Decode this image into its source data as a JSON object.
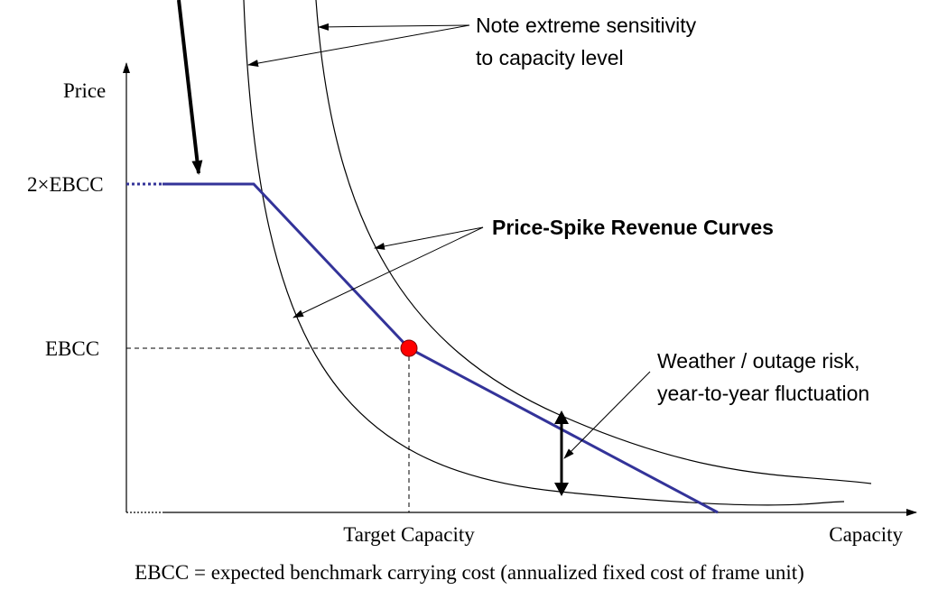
{
  "diagram": {
    "axes": {
      "y_label": "Price",
      "x_label": "Capacity"
    },
    "levels": {
      "high": "2×EBCC",
      "mid": "EBCC"
    },
    "target": "Target Capacity",
    "annotations": {
      "sensitivity": [
        "Note extreme sensitivity",
        "to capacity level"
      ],
      "curves": "Price-Spike Revenue Curves",
      "risk": [
        "Weather / outage risk,",
        "year-to-year fluctuation"
      ]
    },
    "footnote": "EBCC = expected benchmark carrying cost (annualized fixed cost of frame unit)"
  }
}
